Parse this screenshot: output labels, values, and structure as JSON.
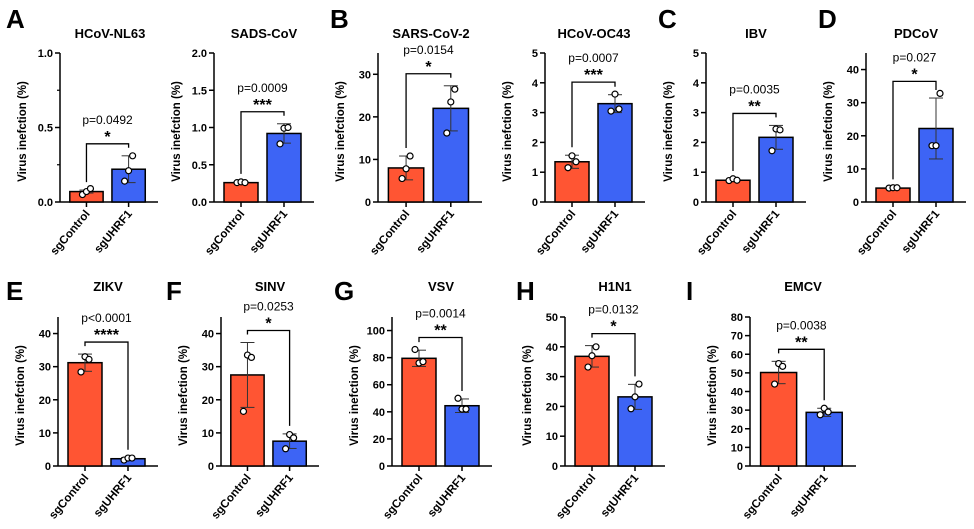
{
  "figure": {
    "colors": {
      "sgControl": "#FF5533",
      "sgUHRF1": "#3D64F5",
      "axis": "#000000"
    }
  },
  "chart_data": [
    {
      "type": "bar",
      "panel": "A",
      "title": "HCoV-NL63",
      "categories": [
        "sgControl",
        "sgUHRF1"
      ],
      "ylabel": "Virus inefction (%)",
      "xlabel": "",
      "ylim": [
        0,
        1.0
      ],
      "yticks": [
        0.0,
        0.5,
        1.0
      ],
      "ytick_labels": [
        "0.0",
        "0.5",
        "1.0"
      ],
      "minor_ticks": [
        0.25,
        0.75
      ],
      "values": [
        0.07,
        0.22
      ],
      "sd": [
        0.01,
        0.09
      ],
      "points": [
        [
          0.05,
          0.07,
          0.09
        ],
        [
          0.14,
          0.21,
          0.31
        ]
      ],
      "pvalue": "p=0.0492",
      "significance": "*"
    },
    {
      "type": "bar",
      "panel": "",
      "title": "SADS-CoV",
      "categories": [
        "sgControl",
        "sgUHRF1"
      ],
      "ylabel": "Virus inefction (%)",
      "xlabel": "",
      "ylim": [
        0,
        2.0
      ],
      "yticks": [
        0.0,
        0.5,
        1.0,
        1.5,
        2.0
      ],
      "ytick_labels": [
        "0.0",
        "0.5",
        "1.0",
        "1.5",
        "2.0"
      ],
      "values": [
        0.26,
        0.92
      ],
      "sd": [
        0.01,
        0.13
      ],
      "points": [
        [
          0.26,
          0.27,
          0.26
        ],
        [
          0.78,
          0.99,
          1.0
        ]
      ],
      "pvalue": "p=0.0009",
      "significance": "***"
    },
    {
      "type": "bar",
      "panel": "B",
      "title": "SARS-CoV-2",
      "categories": [
        "sgControl",
        "sgUHRF1"
      ],
      "ylabel": "Virus inefction (%)",
      "xlabel": "",
      "ylim": [
        0,
        35
      ],
      "yticks": [
        0,
        10,
        20,
        30
      ],
      "ytick_labels": [
        "0",
        "10",
        "20",
        "30"
      ],
      "values": [
        8.0,
        22.0
      ],
      "sd": [
        2.8,
        5.3
      ],
      "points": [
        [
          5.5,
          7.8,
          10.8
        ],
        [
          16.2,
          23.5,
          26.5
        ]
      ],
      "pvalue": "p=0.0154",
      "significance": "*"
    },
    {
      "type": "bar",
      "panel": "",
      "title": "HCoV-OC43",
      "categories": [
        "sgControl",
        "sgUHRF1"
      ],
      "ylabel": "Virus inefction (%)",
      "xlabel": "",
      "ylim": [
        0,
        5
      ],
      "yticks": [
        0,
        1,
        2,
        3,
        4,
        5
      ],
      "ytick_labels": [
        "0",
        "1",
        "2",
        "3",
        "4",
        "5"
      ],
      "values": [
        1.35,
        3.3
      ],
      "sd": [
        0.22,
        0.3
      ],
      "points": [
        [
          1.15,
          1.55,
          1.35
        ],
        [
          3.05,
          3.62,
          3.12
        ]
      ],
      "pvalue": "p=0.0007",
      "significance": "***"
    },
    {
      "type": "bar",
      "panel": "C",
      "title": "IBV",
      "categories": [
        "sgControl",
        "sgUHRF1"
      ],
      "ylabel": "Virus inefction (%)",
      "xlabel": "",
      "ylim": [
        0,
        5
      ],
      "yticks": [
        0,
        1,
        2,
        3,
        4,
        5
      ],
      "ytick_labels": [
        "0",
        "1",
        "2",
        "3",
        "4",
        "5"
      ],
      "values": [
        0.73,
        2.17
      ],
      "sd": [
        0.04,
        0.4
      ],
      "points": [
        [
          0.72,
          0.78,
          0.73
        ],
        [
          1.72,
          2.45,
          2.42
        ]
      ],
      "pvalue": "p=0.0035",
      "significance": "**"
    },
    {
      "type": "bar",
      "panel": "D",
      "title": "PDCoV",
      "categories": [
        "sgControl",
        "sgUHRF1"
      ],
      "ylabel": "Virus inefction (%)",
      "xlabel": "",
      "ylim": [
        0,
        45
      ],
      "yticks": [
        0,
        10,
        20,
        30,
        40
      ],
      "ytick_labels": [
        "0",
        "10",
        "20",
        "30",
        "40"
      ],
      "values": [
        4.2,
        22.2
      ],
      "sd": [
        0.2,
        9.2
      ],
      "points": [
        [
          4.2,
          4.3,
          4.3
        ],
        [
          17.0,
          17.0,
          32.8
        ]
      ],
      "pvalue": "p=0.027",
      "significance": "*"
    },
    {
      "type": "bar",
      "panel": "E",
      "title": "ZIKV",
      "categories": [
        "sgControl",
        "sgUHRF1"
      ],
      "ylabel": "Virus inefction (%)",
      "xlabel": "",
      "ylim": [
        0,
        45
      ],
      "yticks": [
        0,
        10,
        20,
        30,
        40
      ],
      "ytick_labels": [
        "0",
        "10",
        "20",
        "30",
        "40"
      ],
      "values": [
        31.2,
        2.2
      ],
      "sd": [
        2.6,
        0.3
      ],
      "points": [
        [
          28.4,
          33.0,
          32.2
        ],
        [
          1.8,
          2.4,
          2.4
        ]
      ],
      "pvalue": "p<0.0001",
      "significance": "****"
    },
    {
      "type": "bar",
      "panel": "F",
      "title": "SINV",
      "categories": [
        "sgControl",
        "sgUHRF1"
      ],
      "ylabel": "Virus inefction (%)",
      "xlabel": "",
      "ylim": [
        0,
        45
      ],
      "yticks": [
        0,
        10,
        20,
        30,
        40
      ],
      "ytick_labels": [
        "0",
        "10",
        "20",
        "30",
        "40"
      ],
      "values": [
        27.5,
        7.5
      ],
      "sd": [
        9.8,
        2.2
      ],
      "points": [
        [
          16.5,
          33.5,
          32.8
        ],
        [
          5.2,
          9.5,
          8.5
        ]
      ],
      "pvalue": "p=0.0253",
      "significance": "*"
    },
    {
      "type": "bar",
      "panel": "G",
      "title": "VSV",
      "categories": [
        "sgControl",
        "sgUHRF1"
      ],
      "ylabel": "Virus inefction (%)",
      "xlabel": "",
      "ylim": [
        0,
        110
      ],
      "yticks": [
        0,
        20,
        40,
        60,
        80,
        100
      ],
      "ytick_labels": [
        "0",
        "20",
        "40",
        "60",
        "80",
        "100"
      ],
      "values": [
        79.5,
        44.5
      ],
      "sd": [
        6.0,
        5.0
      ],
      "points": [
        [
          86.0,
          76.0,
          77.0
        ],
        [
          50.0,
          42.0,
          42.0
        ]
      ],
      "pvalue": "p=0.0014",
      "significance": "**"
    },
    {
      "type": "bar",
      "panel": "H",
      "title": "H1N1",
      "categories": [
        "sgControl",
        "sgUHRF1"
      ],
      "ylabel": "Virus inefction (%)",
      "xlabel": "",
      "ylim": [
        0,
        50
      ],
      "yticks": [
        0,
        10,
        20,
        30,
        40,
        50
      ],
      "ytick_labels": [
        "0",
        "10",
        "20",
        "30",
        "40",
        "50"
      ],
      "values": [
        36.8,
        23.2
      ],
      "sd": [
        3.6,
        4.2
      ],
      "points": [
        [
          33.2,
          37.0,
          40.0
        ],
        [
          19.2,
          23.2,
          27.5
        ]
      ],
      "pvalue": "p=0.0132",
      "significance": "*"
    },
    {
      "type": "bar",
      "panel": "I",
      "title": "EMCV",
      "categories": [
        "sgControl",
        "sgUHRF1"
      ],
      "ylabel": "Virus inefction (%)",
      "xlabel": "",
      "ylim": [
        0,
        80
      ],
      "yticks": [
        0,
        10,
        20,
        30,
        40,
        50,
        60,
        70,
        80
      ],
      "ytick_labels": [
        "0",
        "10",
        "20",
        "30",
        "40",
        "50",
        "60",
        "70",
        "80"
      ],
      "values": [
        50.2,
        28.8
      ],
      "sd": [
        6.0,
        2.2
      ],
      "points": [
        [
          44.0,
          55.0,
          53.5
        ],
        [
          27.5,
          31.0,
          29.0
        ]
      ],
      "pvalue": "p=0.0038",
      "significance": "**"
    }
  ]
}
